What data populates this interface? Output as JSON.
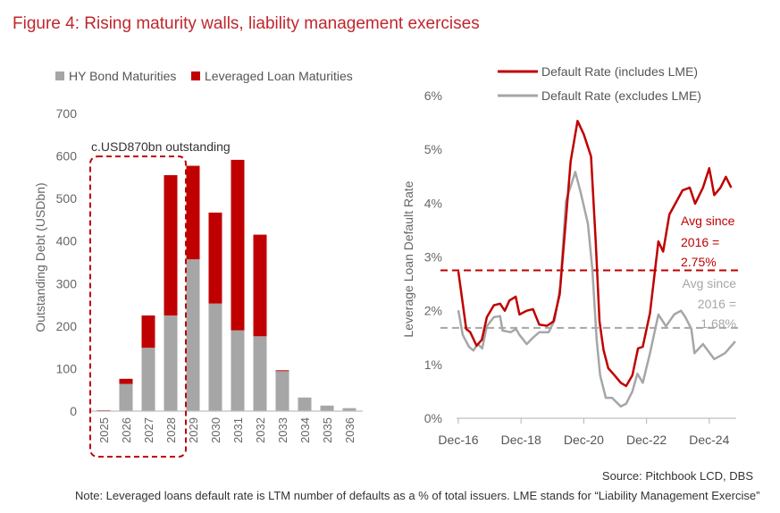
{
  "title": "Figure 4: Rising maturity walls, liability management exercises",
  "source": "Source: Pitchbook LCD, DBS",
  "note": "Note: Leveraged loans default rate is LTM number of defaults as a % of total issuers. LME stands for “Liability Management Exercise”",
  "colors": {
    "red": "#c00000",
    "gray": "#a6a6a6",
    "title": "#c0262d"
  },
  "chart_data": [
    {
      "type": "bar",
      "stacked": true,
      "categories": [
        "2025",
        "2026",
        "2027",
        "2028",
        "2029",
        "2030",
        "2031",
        "2032",
        "2033",
        "2034",
        "2035",
        "2036"
      ],
      "series": [
        {
          "name": "HY Bond Maturities",
          "color": "#a6a6a6",
          "values": [
            0,
            64,
            149,
            225,
            357,
            253,
            190,
            176,
            94,
            32,
            13,
            7
          ]
        },
        {
          "name": "Leveraged Loan Maturities",
          "color": "#c00000",
          "values": [
            2,
            12,
            76,
            330,
            220,
            214,
            401,
            239,
            2,
            0,
            0,
            0
          ]
        }
      ],
      "ylabel": "Outstanding Debt (USDbn)",
      "ylim": [
        0,
        700
      ],
      "yticks": [
        "0",
        "100",
        "200",
        "300",
        "400",
        "500",
        "600",
        "700"
      ],
      "legend": "top",
      "annotation": "c.USD870bn outstanding",
      "highlight_categories": [
        "2025",
        "2026",
        "2027",
        "2028"
      ]
    },
    {
      "type": "line",
      "ylabel": "Leverage Loan Default Rate",
      "ylim": [
        0,
        6
      ],
      "yticks": [
        "0%",
        "1%",
        "2%",
        "3%",
        "4%",
        "5%",
        "6%"
      ],
      "xticks": [
        {
          "label": "Dec-16",
          "x": 2016.92
        },
        {
          "label": "Dec-18",
          "x": 2018.92
        },
        {
          "label": "Dec-20",
          "x": 2020.92
        },
        {
          "label": "Dec-22",
          "x": 2022.92
        },
        {
          "label": "Dec-24",
          "x": 2024.92
        }
      ],
      "xlim": [
        2016.92,
        2025.78
      ],
      "legend": "top",
      "series": [
        {
          "name": "Default Rate (includes LME)",
          "color": "#c00000",
          "x": [
            2016.92,
            2017.17,
            2017.3,
            2017.5,
            2017.67,
            2017.83,
            2018.05,
            2018.25,
            2018.4,
            2018.55,
            2018.75,
            2018.87,
            2019.1,
            2019.3,
            2019.5,
            2019.75,
            2019.95,
            2020.15,
            2020.35,
            2020.5,
            2020.72,
            2020.92,
            2021.15,
            2021.3,
            2021.42,
            2021.55,
            2021.7,
            2021.9,
            2022.1,
            2022.27,
            2022.47,
            2022.65,
            2022.8,
            2023.03,
            2023.3,
            2023.45,
            2023.65,
            2024.07,
            2024.3,
            2024.47,
            2024.72,
            2024.92,
            2025.08,
            2025.28,
            2025.45,
            2025.62
          ],
          "y": [
            2.73,
            1.66,
            1.6,
            1.35,
            1.46,
            1.88,
            2.1,
            2.13,
            2.0,
            2.19,
            2.26,
            1.93,
            2.0,
            2.03,
            1.74,
            1.72,
            1.8,
            2.3,
            3.7,
            4.78,
            5.53,
            5.28,
            4.87,
            3.3,
            1.8,
            1.27,
            0.93,
            0.8,
            0.66,
            0.6,
            0.8,
            1.3,
            1.33,
            1.96,
            3.29,
            3.1,
            3.79,
            4.24,
            4.29,
            3.99,
            4.29,
            4.65,
            4.15,
            4.29,
            4.49,
            4.29
          ]
        },
        {
          "name": "Default Rate (excludes LME)",
          "color": "#a6a6a6",
          "x": [
            2016.92,
            2017.06,
            2017.26,
            2017.4,
            2017.54,
            2017.68,
            2017.83,
            2018.05,
            2018.25,
            2018.33,
            2018.59,
            2018.76,
            2018.87,
            2019.1,
            2019.3,
            2019.5,
            2019.8,
            2019.99,
            2020.17,
            2020.35,
            2020.65,
            2020.82,
            2021.05,
            2021.19,
            2021.33,
            2021.44,
            2021.62,
            2021.82,
            2022.1,
            2022.27,
            2022.47,
            2022.63,
            2022.8,
            2023.03,
            2023.3,
            2023.54,
            2023.8,
            2024.02,
            2024.16,
            2024.35,
            2024.45,
            2024.72,
            2025.08,
            2025.42,
            2025.75
          ],
          "y": [
            2.01,
            1.55,
            1.33,
            1.26,
            1.38,
            1.3,
            1.71,
            1.88,
            1.9,
            1.63,
            1.6,
            1.66,
            1.55,
            1.38,
            1.5,
            1.6,
            1.6,
            1.83,
            2.46,
            4.04,
            4.58,
            4.2,
            3.62,
            2.79,
            1.46,
            0.8,
            0.38,
            0.38,
            0.22,
            0.27,
            0.5,
            0.83,
            0.66,
            1.21,
            1.93,
            1.71,
            1.93,
            2.0,
            1.88,
            1.66,
            1.21,
            1.38,
            1.1,
            1.21,
            1.43
          ]
        }
      ],
      "reference_lines": [
        {
          "value": 2.75,
          "color": "#c00000",
          "label_lines": [
            "Avg since",
            "2016 =",
            "2.75%"
          ]
        },
        {
          "value": 1.68,
          "color": "#a6a6a6",
          "label_lines": [
            "Avg since",
            "2016 =",
            "1.68%"
          ]
        }
      ]
    }
  ]
}
